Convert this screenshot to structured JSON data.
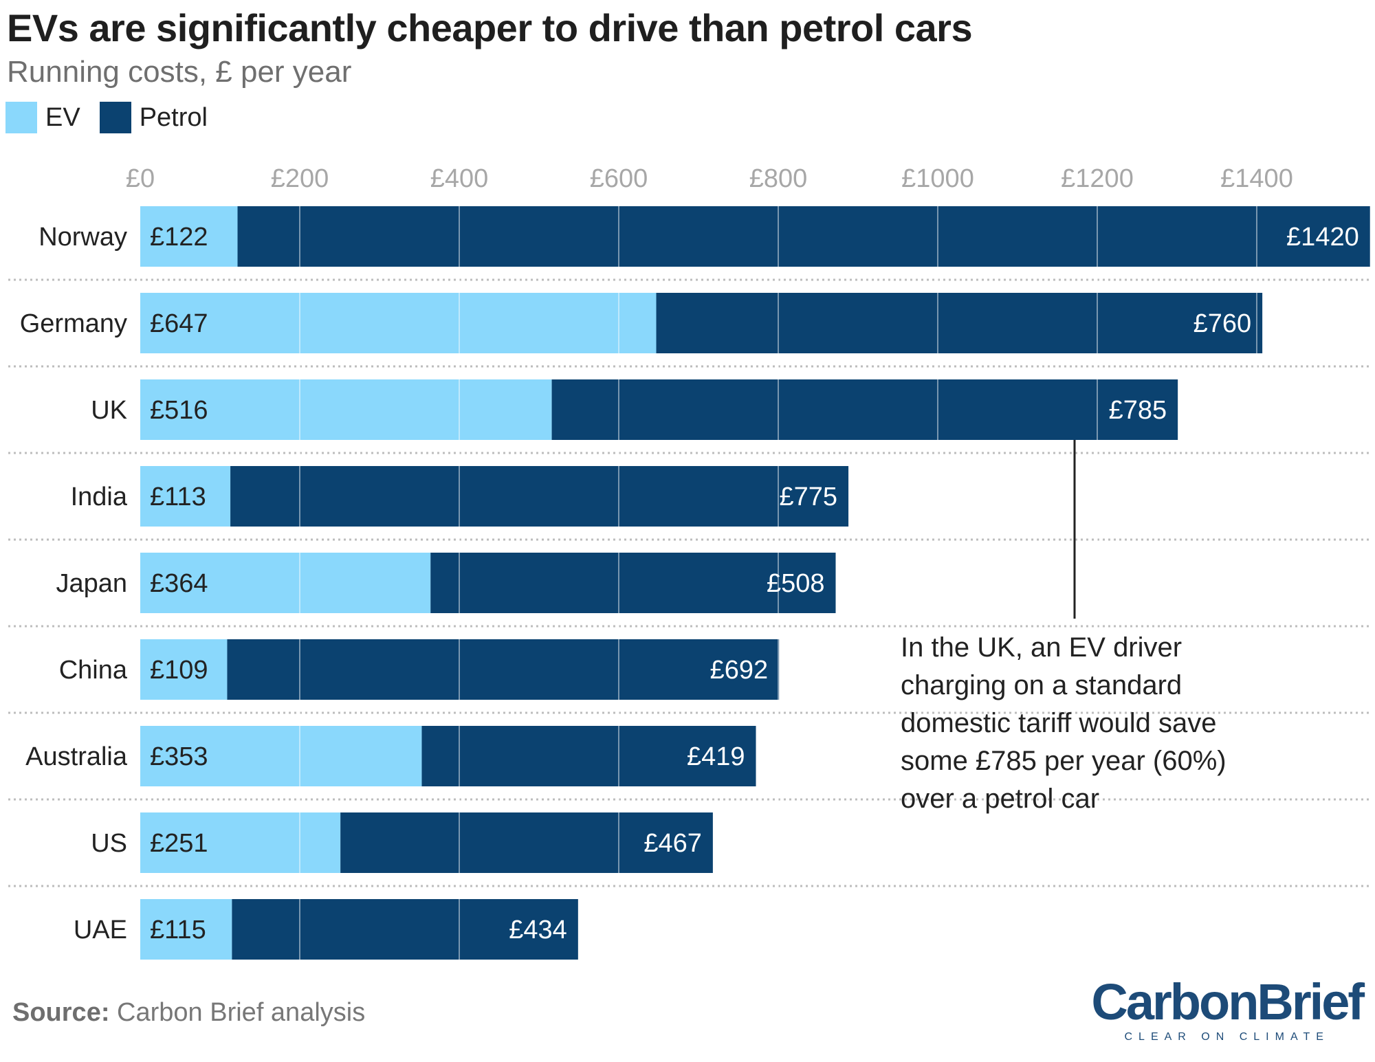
{
  "header": {
    "title": "EVs are significantly cheaper to drive than petrol cars",
    "subtitle": "Running costs, £ per year"
  },
  "legend": [
    {
      "label": "EV",
      "color": "#8ad8fc"
    },
    {
      "label": "Petrol",
      "color": "#0b4270"
    }
  ],
  "chart_data": {
    "type": "bar",
    "orientation": "horizontal",
    "stacked": true,
    "title": "EVs are significantly cheaper to drive than petrol cars",
    "subtitle": "Running costs, £ per year",
    "xlim": [
      0,
      1545
    ],
    "ticks": [
      0,
      200,
      400,
      600,
      800,
      1000,
      1200,
      1400
    ],
    "tick_labels": [
      "£0",
      "£200",
      "£400",
      "£600",
      "£800",
      "£1000",
      "£1200",
      "£1400"
    ],
    "categories": [
      "Norway",
      "Germany",
      "UK",
      "India",
      "Japan",
      "China",
      "Australia",
      "US",
      "UAE"
    ],
    "series": [
      {
        "name": "EV",
        "color": "#8ad8fc",
        "values": [
          122,
          647,
          516,
          113,
          364,
          109,
          353,
          251,
          115
        ],
        "labels": [
          "£122",
          "£647",
          "£516",
          "£113",
          "£364",
          "£109",
          "£353",
          "£251",
          "£115"
        ]
      },
      {
        "name": "Petrol",
        "color": "#0b4270",
        "values": [
          1420,
          760,
          785,
          775,
          508,
          692,
          419,
          467,
          434
        ],
        "labels": [
          "£1420",
          "£760",
          "£785",
          "£775",
          "£508",
          "£692",
          "£419",
          "£467",
          "£434"
        ]
      }
    ],
    "grid": true,
    "legend_position": "top-left",
    "annotation": {
      "category": "UK",
      "lines": [
        "In the UK, an EV driver",
        "charging on a standard",
        "domestic tariff would save",
        "some £785 per year (60%)",
        "over a petrol car"
      ]
    }
  },
  "footer": {
    "source_label": "Source:",
    "source_text": "Carbon Brief analysis",
    "logo_text": "CarbonBrief",
    "logo_tagline": "CLEAR ON CLIMATE"
  }
}
